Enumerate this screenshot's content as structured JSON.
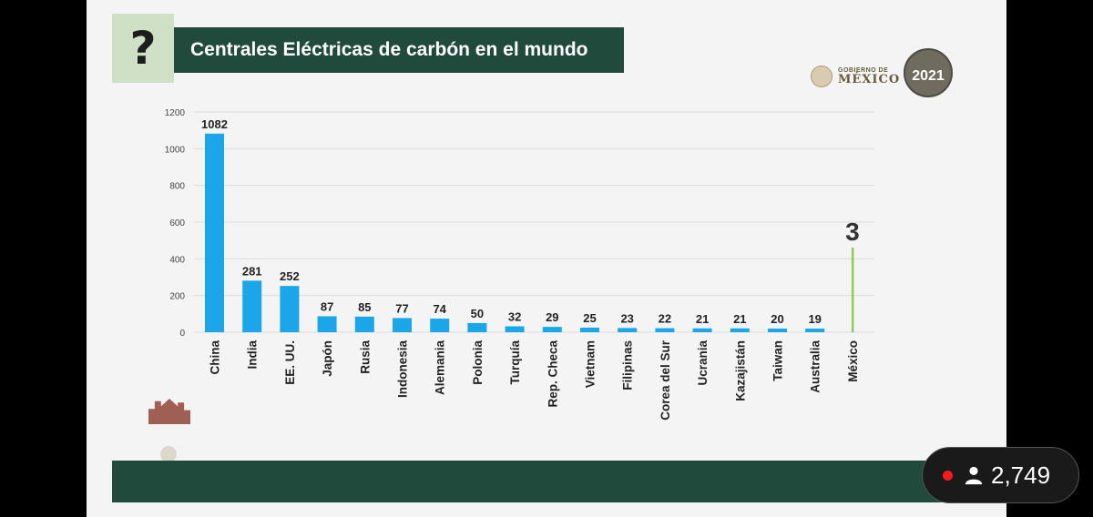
{
  "slide": {
    "question_mark": "?",
    "title": "Centrales Eléctricas de carbón en el mundo",
    "gov_logo": {
      "line1": "GOBIERNO DE",
      "line2": "MÉXICO"
    },
    "year_emblem": "2021"
  },
  "colors": {
    "bar": "#1aa6e8",
    "highlight": "#8ccc5e",
    "band": "#1f4a3c"
  },
  "chart_data": {
    "type": "bar",
    "title": "Centrales Eléctricas de carbón en el mundo",
    "categories": [
      "China",
      "India",
      "EE. UU.",
      "Japón",
      "Rusia",
      "Indonesia",
      "Alemania",
      "Polonia",
      "Turquía",
      "Rep. Checa",
      "Vietnam",
      "Filipinas",
      "Corea del Sur",
      "Ucrania",
      "Kazajistán",
      "Taiwan",
      "Australia",
      "México"
    ],
    "values": [
      1082,
      281,
      252,
      87,
      85,
      77,
      74,
      50,
      32,
      29,
      25,
      23,
      22,
      21,
      21,
      20,
      19,
      3
    ],
    "value_labels": [
      "1082",
      "281",
      "252",
      "87",
      "85",
      "77",
      "74",
      "50",
      "32",
      "29",
      "25",
      "23",
      "22",
      "21",
      "21",
      "20",
      "19",
      "3"
    ],
    "highlight": "México",
    "yticks": [
      "0",
      "200",
      "400",
      "600",
      "800",
      "1000",
      "1200"
    ],
    "ylim": [
      0,
      1200
    ],
    "grid": true,
    "xlabel": "",
    "ylabel": ""
  },
  "overlay": {
    "viewer_count": "2,749"
  }
}
